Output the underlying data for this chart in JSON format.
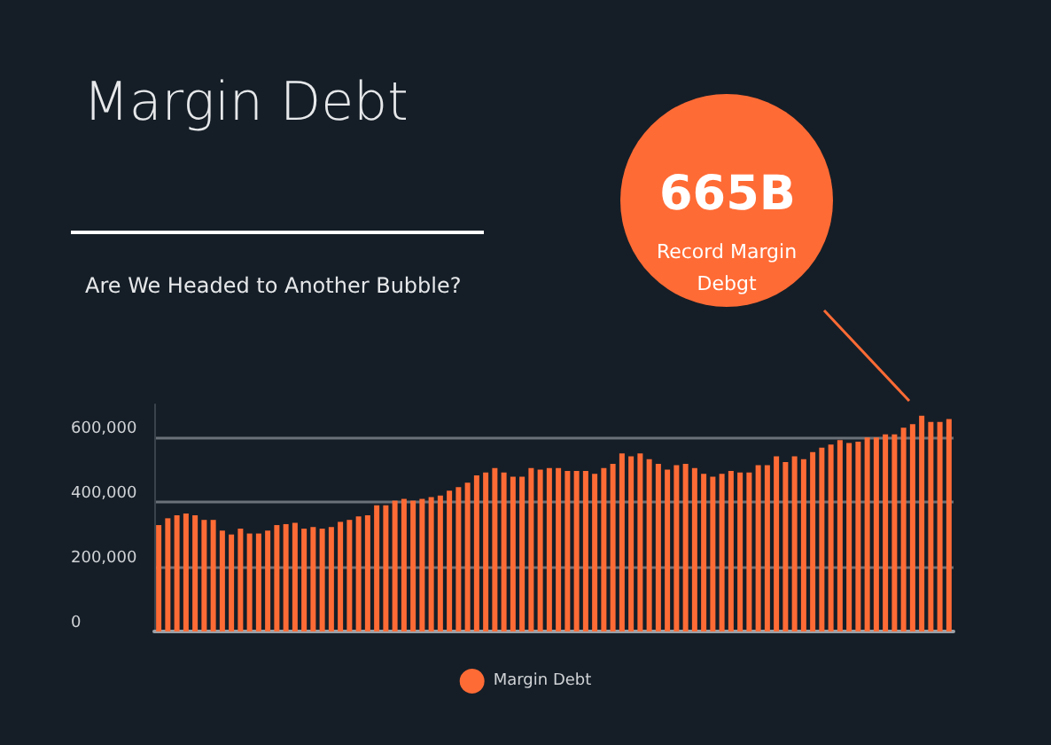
{
  "chart_data": {
    "type": "bar",
    "title": "Margin Debt",
    "subtitle": "Are We Headed to Another Bubble?",
    "annotations": [
      "665B",
      "Record Margin Debgt"
    ],
    "categories": [
      null,
      null,
      null,
      null,
      null,
      null,
      null,
      null,
      null,
      null,
      null,
      null,
      null,
      null,
      null,
      null,
      null,
      null,
      null,
      null,
      null,
      null,
      null,
      null,
      null,
      null,
      null,
      null,
      null,
      null,
      null,
      null,
      null,
      null,
      null,
      null,
      null,
      null,
      null,
      null,
      null,
      null,
      null,
      null,
      null,
      null,
      null,
      null,
      null,
      null,
      null,
      null,
      null,
      null,
      null,
      null,
      null,
      null,
      null,
      null,
      null,
      null,
      null,
      null,
      null,
      null,
      null,
      null,
      null,
      null,
      null,
      null,
      null,
      null,
      null,
      null,
      null,
      null,
      null,
      null,
      null,
      null,
      null,
      null,
      null,
      null,
      null,
      null
    ],
    "series": [
      {
        "name": "Margin Debt",
        "color": "#ff6b35",
        "values": [
          328000,
          349000,
          358000,
          364000,
          358000,
          344000,
          344000,
          311000,
          299000,
          317000,
          302000,
          302000,
          311000,
          328000,
          331000,
          335000,
          317000,
          322000,
          317000,
          322000,
          338000,
          344000,
          355000,
          358000,
          389000,
          389000,
          403000,
          409000,
          403000,
          409000,
          414000,
          419000,
          434000,
          445000,
          459000,
          481000,
          490000,
          504000,
          490000,
          477000,
          477000,
          504000,
          499000,
          504000,
          504000,
          495000,
          495000,
          495000,
          486000,
          504000,
          517000,
          549000,
          540000,
          549000,
          531000,
          517000,
          499000,
          513000,
          517000,
          504000,
          486000,
          477000,
          486000,
          495000,
          490000,
          490000,
          513000,
          513000,
          540000,
          522000,
          540000,
          531000,
          553000,
          567000,
          576000,
          590000,
          581000,
          585000,
          598000,
          598000,
          608000,
          608000,
          628000,
          639000,
          665000,
          646000,
          646000,
          655000
        ]
      }
    ],
    "ylim": [
      0,
      700000
    ],
    "yticks": [
      0,
      {
        "value": 200000,
        "label": "200,000"
      },
      {
        "value": 400000,
        "label": "400,000"
      },
      {
        "value": 600000,
        "label": "600,000"
      }
    ],
    "grid": "y",
    "legend": "bottom"
  }
}
